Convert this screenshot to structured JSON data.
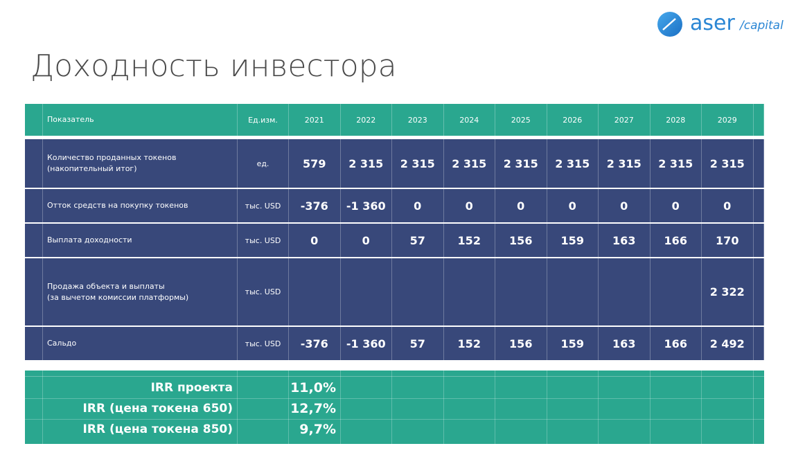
{
  "logo": {
    "brand": "aser",
    "suffix": "/capital"
  },
  "title": "Доходность инвестора",
  "table": {
    "header": [
      "Показатель",
      "Ед.изм.",
      "2021",
      "2022",
      "2023",
      "2024",
      "2025",
      "2026",
      "2027",
      "2028",
      "2029"
    ],
    "rows": [
      [
        "Количество проданных токенов\n(накопительный итог)",
        "ед.",
        "579",
        "2 315",
        "2 315",
        "2 315",
        "2 315",
        "2 315",
        "2 315",
        "2 315",
        "2 315"
      ],
      [
        "Отток средств на покупку токенов",
        "тыс. USD",
        "-376",
        "-1 360",
        "0",
        "0",
        "0",
        "0",
        "0",
        "0",
        "0"
      ],
      [
        "Выплата доходности",
        "тыс. USD",
        "0",
        "0",
        "57",
        "152",
        "156",
        "159",
        "163",
        "166",
        "170"
      ],
      [
        "Продажа объекта и выплаты\n(за вычетом комиссии платформы)",
        "тыс. USD",
        null,
        null,
        null,
        null,
        null,
        null,
        null,
        null,
        "2 322"
      ],
      [
        "Сальдо",
        "тыс. USD",
        "-376",
        "-1 360",
        "57",
        "152",
        "156",
        "159",
        "163",
        "166",
        "2 492"
      ]
    ]
  },
  "irr": [
    {
      "label": "IRR проекта",
      "value": "11,0%"
    },
    {
      "label": "IRR (цена токена 650)",
      "value": "12,7%"
    },
    {
      "label": "IRR (цена токена 850)",
      "value": "9,7%"
    }
  ]
}
